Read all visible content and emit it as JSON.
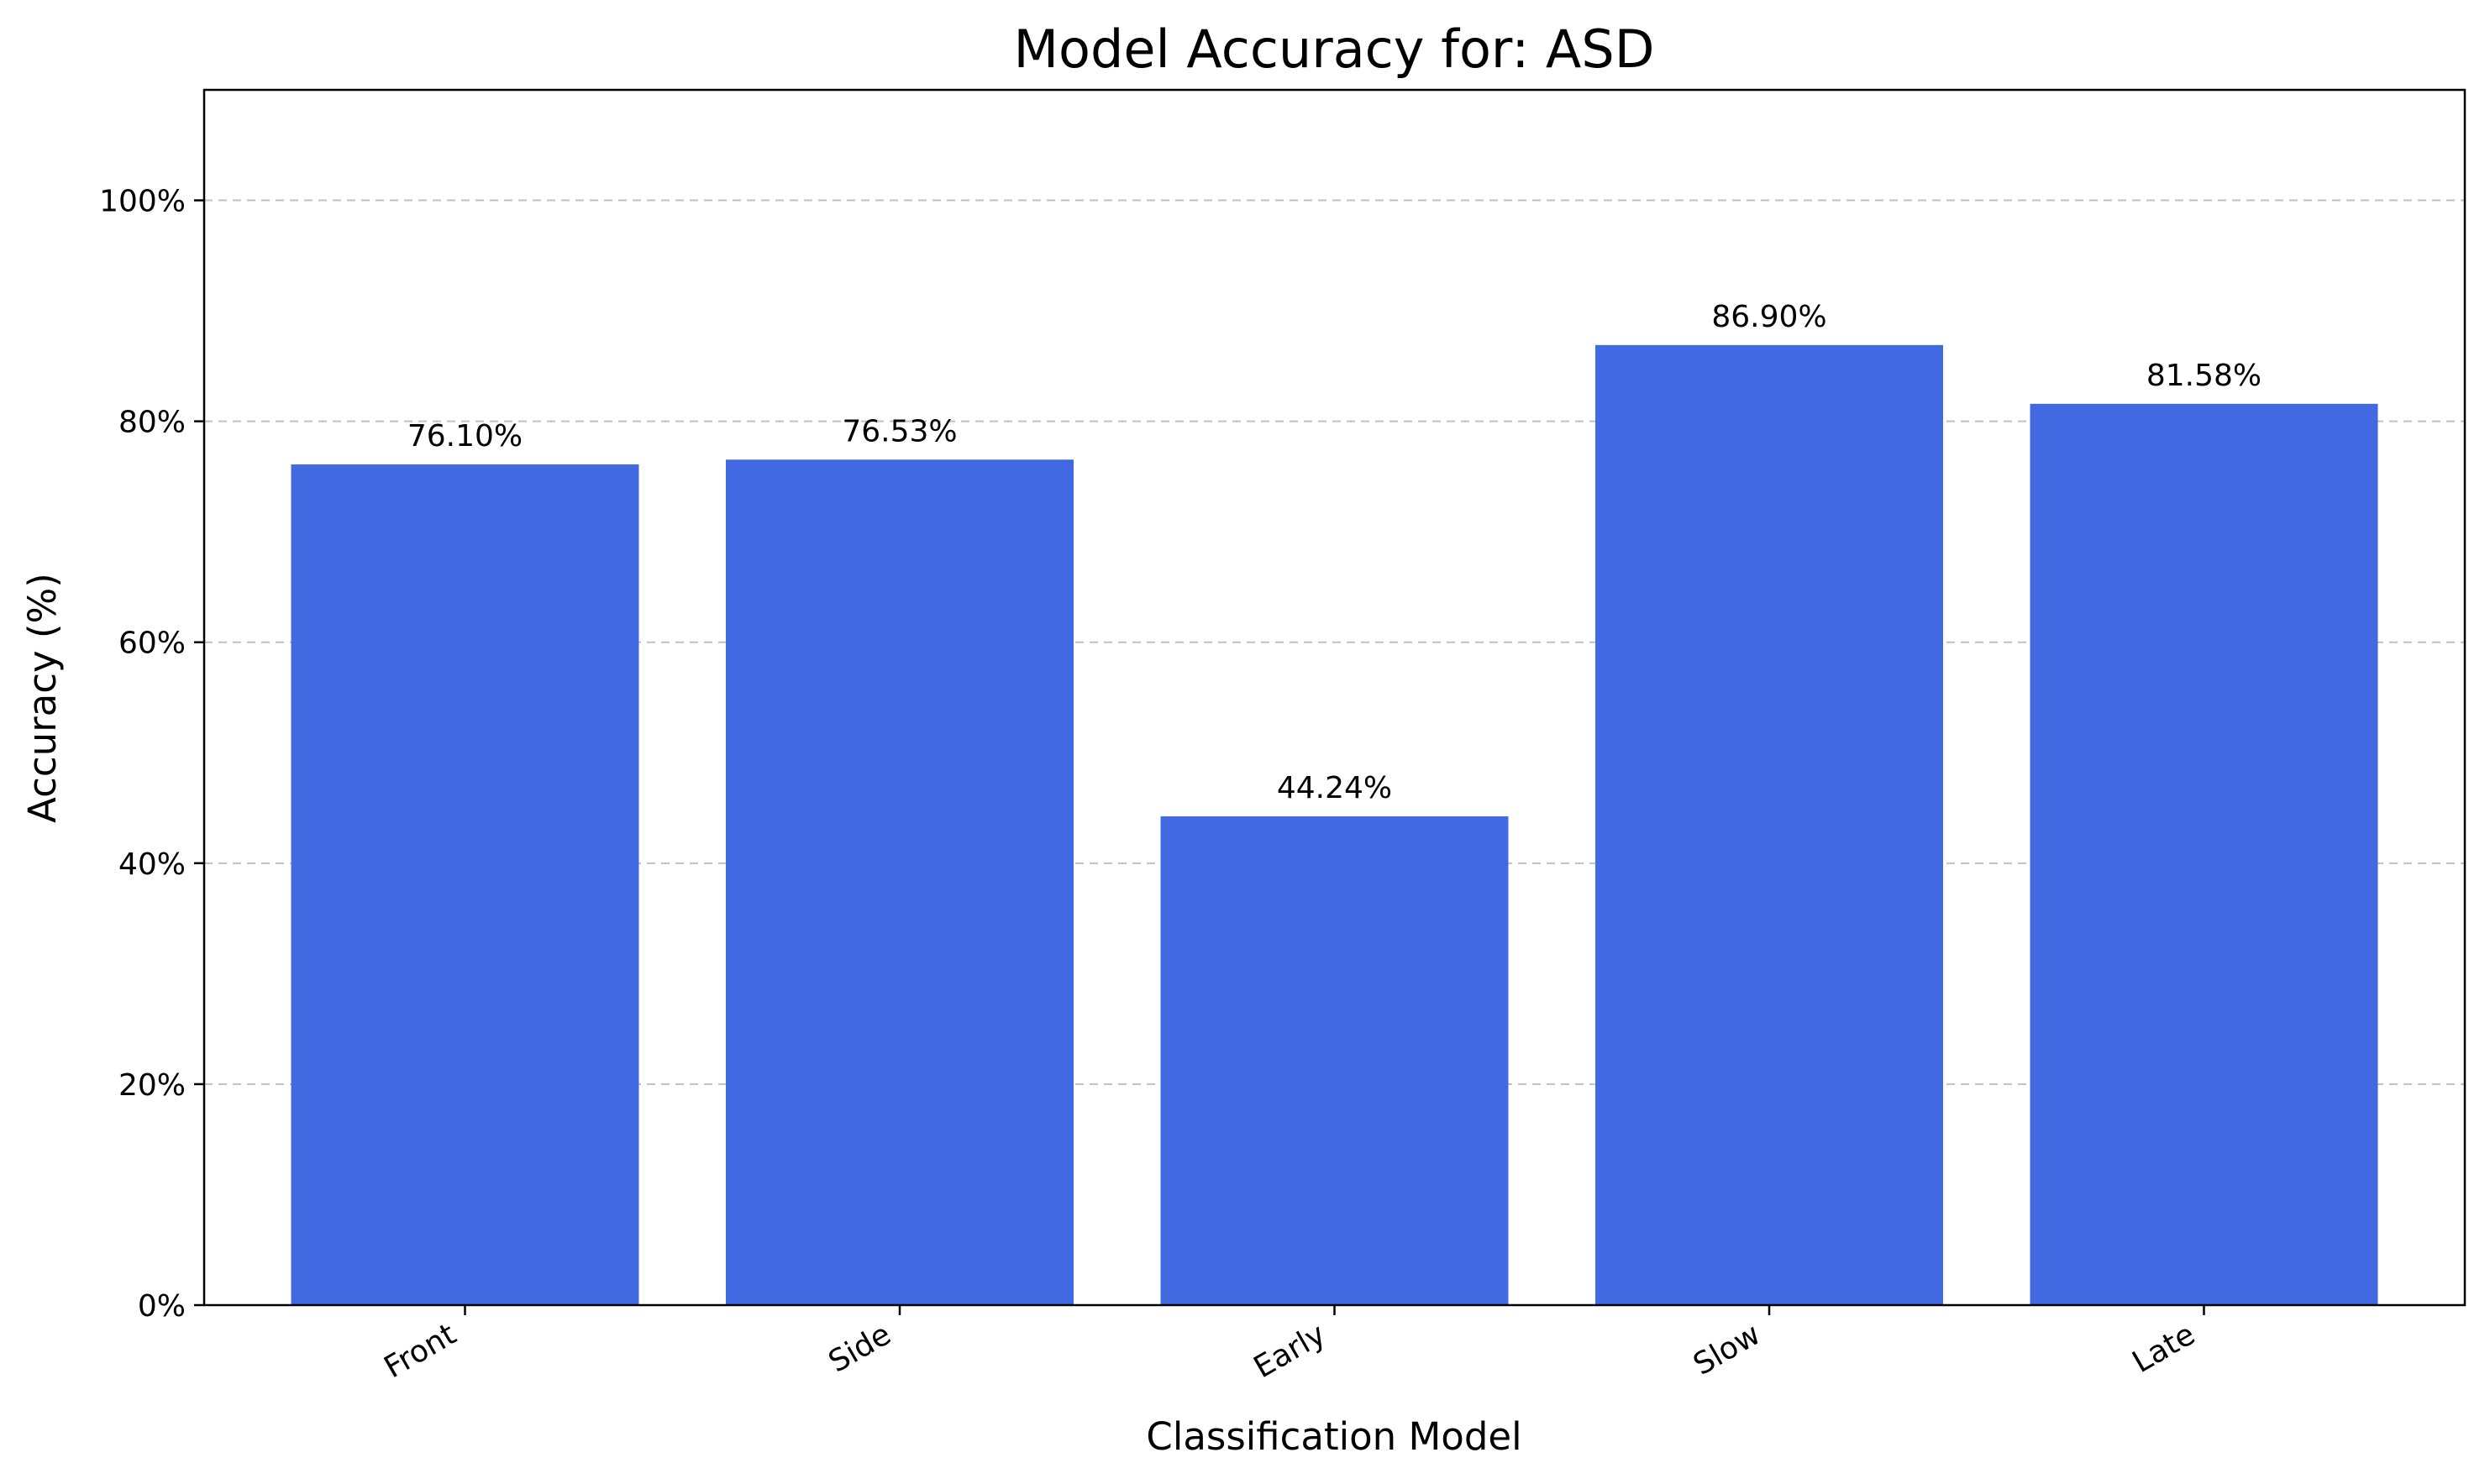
{
  "chart_data": {
    "type": "bar",
    "title": "Model Accuracy for: ASD",
    "xlabel": "Classification Model",
    "ylabel": "Accuracy (%)",
    "categories": [
      "Front",
      "Side",
      "Early",
      "Slow",
      "Late"
    ],
    "values": [
      76.1,
      76.53,
      44.24,
      86.9,
      81.58
    ],
    "value_labels": [
      "76.10%",
      "76.53%",
      "44.24%",
      "86.90%",
      "81.58%"
    ],
    "ylim": [
      0,
      110
    ],
    "yticks": [
      0,
      20,
      40,
      60,
      80,
      100
    ],
    "ytick_labels": [
      "0%",
      "20%",
      "40%",
      "60%",
      "80%",
      "100%"
    ],
    "grid": "y-dashed",
    "bar_color": "#4169e1",
    "grid_color": "#c0c0c0"
  }
}
